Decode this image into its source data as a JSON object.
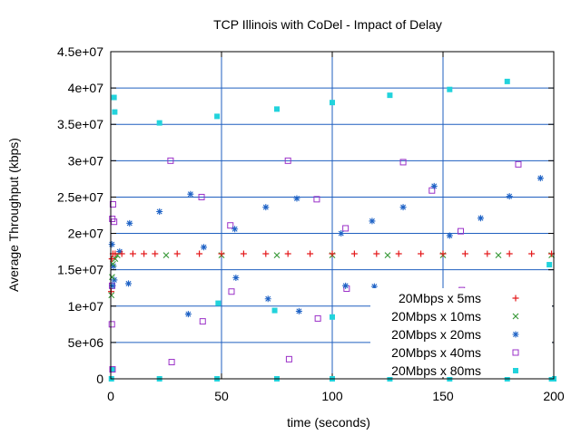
{
  "chart_data": {
    "type": "scatter",
    "title": "TCP Illinois with CoDel - Impact of Delay",
    "xlabel": "time (seconds)",
    "ylabel": "Average Throughput (kbps)",
    "xlim": [
      0,
      200
    ],
    "ylim": [
      0,
      45000000
    ],
    "x_ticks": [
      0,
      50,
      100,
      150,
      200
    ],
    "x_tick_labels": [
      "0",
      "50",
      "100",
      "150",
      "200"
    ],
    "y_ticks": [
      0,
      5000000,
      10000000,
      15000000,
      20000000,
      25000000,
      30000000,
      35000000,
      40000000,
      45000000
    ],
    "y_tick_labels": [
      "0",
      "5e+06",
      "1e+07",
      "1.5e+07",
      "2e+07",
      "2.5e+07",
      "3e+07",
      "3.5e+07",
      "4e+07",
      "4.5e+07"
    ],
    "grid": true,
    "legend_position": "bottom-right",
    "series": [
      {
        "name": "20Mbps x 5ms",
        "marker": "plus",
        "color": "#e41a1c",
        "points": [
          [
            0.2,
            12000000
          ],
          [
            0.5,
            16500000
          ],
          [
            1,
            17200000
          ],
          [
            2,
            17200000
          ],
          [
            5,
            17200000
          ],
          [
            10,
            17200000
          ],
          [
            15,
            17200000
          ],
          [
            20,
            17200000
          ],
          [
            30,
            17200000
          ],
          [
            40,
            17200000
          ],
          [
            50,
            17200000
          ],
          [
            60,
            17200000
          ],
          [
            70,
            17200000
          ],
          [
            80,
            17200000
          ],
          [
            90,
            17200000
          ],
          [
            100,
            17200000
          ],
          [
            110,
            17200000
          ],
          [
            120,
            17200000
          ],
          [
            130,
            17200000
          ],
          [
            140,
            17200000
          ],
          [
            150,
            17200000
          ],
          [
            160,
            17200000
          ],
          [
            170,
            17200000
          ],
          [
            180,
            17200000
          ],
          [
            190,
            17200000
          ],
          [
            199,
            17200000
          ]
        ]
      },
      {
        "name": "20Mbps x 10ms",
        "marker": "x",
        "color": "#3a9a3a",
        "points": [
          [
            0.3,
            11500000
          ],
          [
            0.6,
            14000000
          ],
          [
            1,
            15800000
          ],
          [
            2,
            16500000
          ],
          [
            3,
            17000000
          ],
          [
            25,
            17000000
          ],
          [
            50,
            17000000
          ],
          [
            75,
            17000000
          ],
          [
            100,
            17000000
          ],
          [
            125,
            17000000
          ],
          [
            150,
            17000000
          ],
          [
            175,
            17000000
          ],
          [
            199,
            17000000
          ]
        ]
      },
      {
        "name": "20Mbps x 20ms",
        "marker": "star",
        "color": "#1f63c6",
        "points": [
          [
            0.5,
            18500000
          ],
          [
            0.8,
            12800000
          ],
          [
            1.2,
            15500000
          ],
          [
            1.6,
            13600000
          ],
          [
            4,
            17500000
          ],
          [
            8,
            13100000
          ],
          [
            8.5,
            21400000
          ],
          [
            22,
            23000000
          ],
          [
            35,
            8900000
          ],
          [
            36,
            25400000
          ],
          [
            42,
            18100000
          ],
          [
            56,
            20600000
          ],
          [
            56.5,
            13900000
          ],
          [
            70,
            23600000
          ],
          [
            71,
            11000000
          ],
          [
            84,
            24800000
          ],
          [
            85,
            9300000
          ],
          [
            104,
            20000000
          ],
          [
            106,
            12800000
          ],
          [
            118,
            21700000
          ],
          [
            119,
            12700000
          ],
          [
            132,
            23600000
          ],
          [
            146,
            26500000
          ],
          [
            147,
            7900000
          ],
          [
            153,
            19700000
          ],
          [
            167,
            22100000
          ],
          [
            169,
            11600000
          ],
          [
            180,
            25100000
          ],
          [
            182,
            6300000
          ],
          [
            194,
            27600000
          ],
          [
            196,
            7000000
          ],
          [
            197,
            8800000
          ]
        ]
      },
      {
        "name": "20Mbps x 40ms",
        "marker": "square-open",
        "color": "#9b30c8",
        "points": [
          [
            0.5,
            7500000
          ],
          [
            0.7,
            22000000
          ],
          [
            1,
            24000000
          ],
          [
            1.5,
            21600000
          ],
          [
            0.6,
            12800000
          ],
          [
            0.8,
            1300000
          ],
          [
            27,
            30000000
          ],
          [
            27.5,
            2300000
          ],
          [
            41,
            25000000
          ],
          [
            41.5,
            7900000
          ],
          [
            54,
            21100000
          ],
          [
            54.5,
            12000000
          ],
          [
            80,
            30000000
          ],
          [
            80.5,
            2700000
          ],
          [
            93,
            24700000
          ],
          [
            93.5,
            8300000
          ],
          [
            106,
            20700000
          ],
          [
            106.5,
            12400000
          ],
          [
            132,
            29800000
          ],
          [
            132.5,
            3100000
          ],
          [
            145,
            25900000
          ],
          [
            145.5,
            7500000
          ],
          [
            158,
            20300000
          ],
          [
            158.5,
            12200000
          ],
          [
            184,
            29500000
          ],
          [
            184.5,
            3400000
          ],
          [
            197,
            5300000
          ]
        ]
      },
      {
        "name": "20Mbps x 80ms",
        "marker": "square-filled",
        "color": "#22d3dc",
        "points": [
          [
            1.5,
            38700000
          ],
          [
            1.8,
            36700000
          ],
          [
            0.3,
            0
          ],
          [
            0.7,
            1300000
          ],
          [
            22,
            35200000
          ],
          [
            22,
            0
          ],
          [
            48,
            36100000
          ],
          [
            48,
            0
          ],
          [
            75,
            37100000
          ],
          [
            75,
            0
          ],
          [
            100,
            38000000
          ],
          [
            100,
            0
          ],
          [
            126,
            39000000
          ],
          [
            126,
            0
          ],
          [
            153,
            39800000
          ],
          [
            153,
            0
          ],
          [
            179,
            40900000
          ],
          [
            179,
            0
          ],
          [
            199,
            0
          ],
          [
            200,
            0
          ],
          [
            48.5,
            10400000
          ],
          [
            74,
            9400000
          ],
          [
            100,
            8500000
          ],
          [
            126,
            7400000
          ],
          [
            153,
            6600000
          ],
          [
            178,
            5700000
          ],
          [
            181,
            1700000
          ],
          [
            198,
            15700000
          ]
        ]
      }
    ]
  }
}
